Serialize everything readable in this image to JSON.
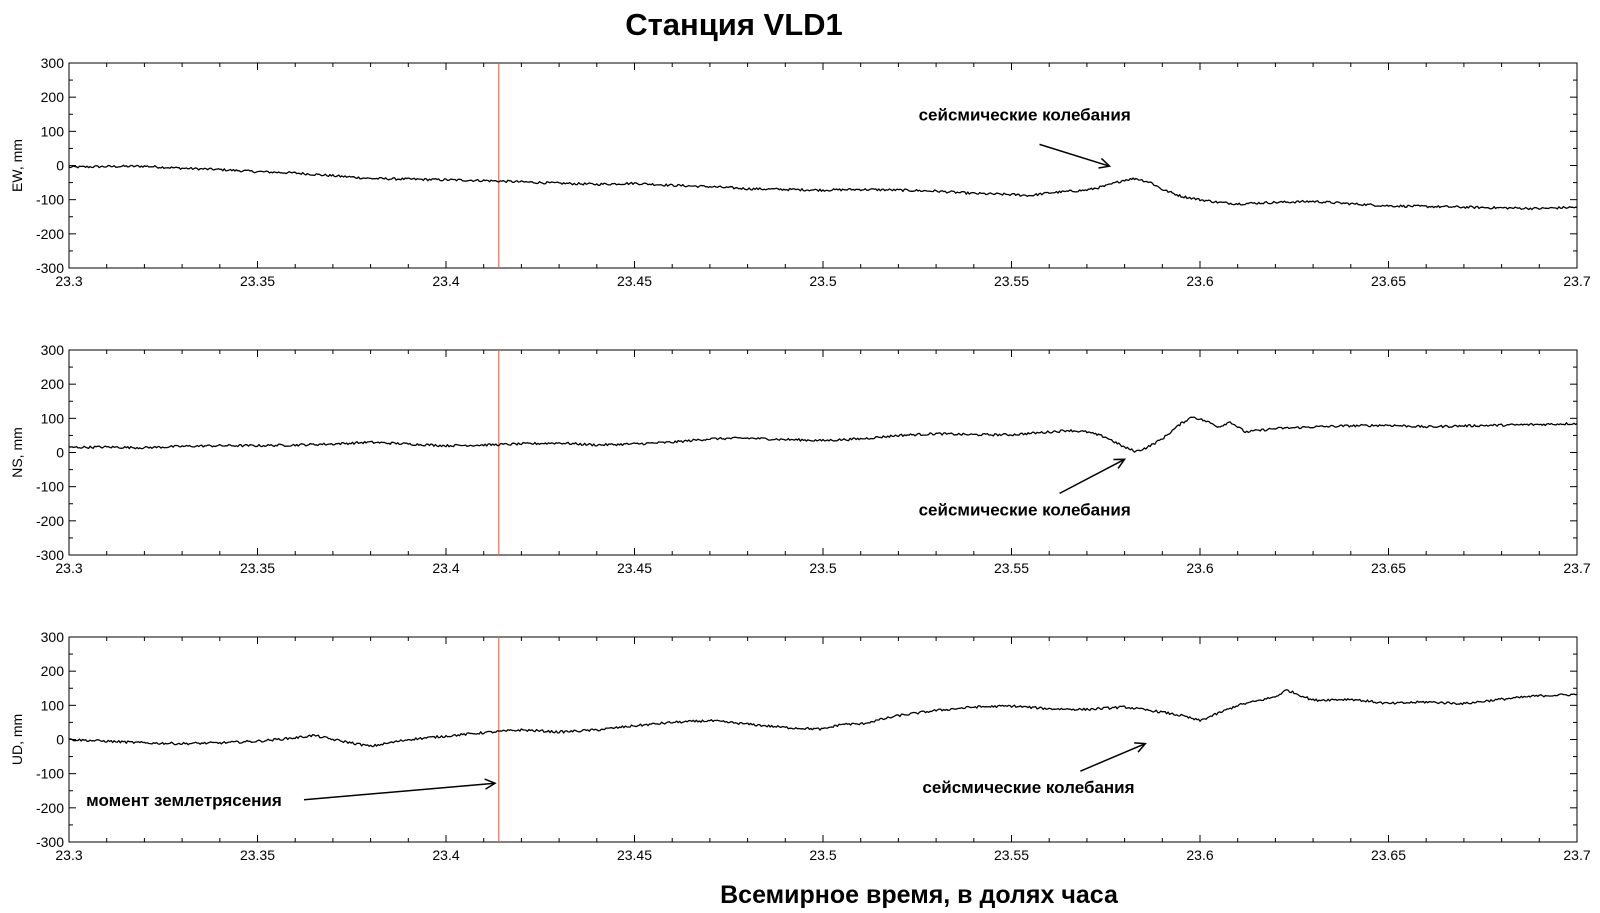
{
  "title": "Станция VLD1",
  "xlabel": "Всемирное время, в долях часа",
  "colors": {
    "signal": "#000000",
    "event_line": "#e07060",
    "axes": "#000000"
  },
  "chart_data": [
    {
      "type": "line",
      "ylabel": "EW, mm",
      "xlim": [
        23.3,
        23.7
      ],
      "ylim": [
        -300,
        300
      ],
      "xticks": [
        23.3,
        23.35,
        23.4,
        23.45,
        23.5,
        23.55,
        23.6,
        23.65,
        23.7
      ],
      "xtick_labels": [
        "23.3",
        "23.35",
        "23.4",
        "23.45",
        "23.5",
        "23.55",
        "23.6",
        "23.65",
        "23.7"
      ],
      "yticks": [
        -300,
        -200,
        -100,
        0,
        100,
        200,
        300
      ],
      "ytick_labels": [
        "-300",
        "-200",
        "-100",
        "0",
        "100",
        "200",
        "300"
      ],
      "event_x": 23.414,
      "series": [
        {
          "x": [
            23.3,
            23.31,
            23.32,
            23.33,
            23.34,
            23.35,
            23.36,
            23.37,
            23.38,
            23.39,
            23.4,
            23.41,
            23.42,
            23.43,
            23.44,
            23.45,
            23.46,
            23.47,
            23.48,
            23.49,
            23.5,
            23.51,
            23.52,
            23.53,
            23.54,
            23.55,
            23.555,
            23.56,
            23.565,
            23.57,
            23.575,
            23.58,
            23.583,
            23.587,
            23.59,
            23.595,
            23.6,
            23.605,
            23.61,
            23.62,
            23.63,
            23.64,
            23.65,
            23.66,
            23.67,
            23.68,
            23.69,
            23.7
          ],
          "values": [
            -5,
            -3,
            -2,
            -8,
            -12,
            -18,
            -22,
            -30,
            -38,
            -40,
            -42,
            -44,
            -48,
            -52,
            -55,
            -52,
            -58,
            -62,
            -68,
            -70,
            -72,
            -70,
            -72,
            -75,
            -82,
            -85,
            -88,
            -80,
            -76,
            -72,
            -60,
            -42,
            -38,
            -50,
            -70,
            -90,
            -100,
            -108,
            -112,
            -108,
            -105,
            -112,
            -118,
            -120,
            -122,
            -124,
            -126,
            -122
          ]
        }
      ],
      "annotations": [
        {
          "text": "сейсмические колебания",
          "x": 23.5535,
          "y": 132,
          "target_x": 23.576,
          "target_y": -2
        }
      ]
    },
    {
      "type": "line",
      "ylabel": "NS, mm",
      "xlim": [
        23.3,
        23.7
      ],
      "ylim": [
        -300,
        300
      ],
      "xticks": [
        23.3,
        23.35,
        23.4,
        23.45,
        23.5,
        23.55,
        23.6,
        23.65,
        23.7
      ],
      "xtick_labels": [
        "23.3",
        "23.35",
        "23.4",
        "23.45",
        "23.5",
        "23.55",
        "23.6",
        "23.65",
        "23.7"
      ],
      "yticks": [
        -300,
        -200,
        -100,
        0,
        100,
        200,
        300
      ],
      "ytick_labels": [
        "-300",
        "-200",
        "-100",
        "0",
        "100",
        "200",
        "300"
      ],
      "event_x": 23.414,
      "series": [
        {
          "x": [
            23.3,
            23.31,
            23.32,
            23.33,
            23.34,
            23.35,
            23.36,
            23.37,
            23.38,
            23.39,
            23.4,
            23.41,
            23.42,
            23.43,
            23.44,
            23.45,
            23.46,
            23.47,
            23.48,
            23.49,
            23.5,
            23.51,
            23.52,
            23.53,
            23.54,
            23.55,
            23.56,
            23.565,
            23.57,
            23.575,
            23.58,
            23.583,
            23.586,
            23.59,
            23.595,
            23.598,
            23.602,
            23.605,
            23.608,
            23.612,
            23.62,
            23.63,
            23.64,
            23.65,
            23.66,
            23.67,
            23.68,
            23.69,
            23.7
          ],
          "values": [
            15,
            16,
            14,
            18,
            20,
            20,
            22,
            25,
            30,
            25,
            20,
            22,
            25,
            28,
            22,
            25,
            30,
            40,
            42,
            38,
            35,
            40,
            50,
            55,
            52,
            52,
            60,
            65,
            60,
            45,
            15,
            3,
            15,
            40,
            85,
            105,
            90,
            75,
            90,
            60,
            70,
            75,
            78,
            80,
            75,
            78,
            80,
            82,
            85
          ]
        }
      ],
      "annotations": [
        {
          "text": "сейсмические колебания",
          "x": 23.5535,
          "y": -184,
          "target_x": 23.58,
          "target_y": -20
        }
      ]
    },
    {
      "type": "line",
      "ylabel": "UD, mm",
      "xlim": [
        23.3,
        23.7
      ],
      "ylim": [
        -300,
        300
      ],
      "xticks": [
        23.3,
        23.35,
        23.4,
        23.45,
        23.5,
        23.55,
        23.6,
        23.65,
        23.7
      ],
      "xtick_labels": [
        "23.3",
        "23.35",
        "23.4",
        "23.45",
        "23.5",
        "23.55",
        "23.6",
        "23.65",
        "23.7"
      ],
      "yticks": [
        -300,
        -200,
        -100,
        0,
        100,
        200,
        300
      ],
      "ytick_labels": [
        "-300",
        "-200",
        "-100",
        "0",
        "100",
        "200",
        "300"
      ],
      "event_x": 23.414,
      "series": [
        {
          "x": [
            23.3,
            23.31,
            23.32,
            23.33,
            23.34,
            23.35,
            23.36,
            23.365,
            23.37,
            23.38,
            23.39,
            23.4,
            23.41,
            23.42,
            23.43,
            23.44,
            23.45,
            23.46,
            23.47,
            23.48,
            23.49,
            23.5,
            23.505,
            23.51,
            23.52,
            23.53,
            23.54,
            23.55,
            23.56,
            23.57,
            23.58,
            23.59,
            23.595,
            23.6,
            23.61,
            23.62,
            23.623,
            23.63,
            23.64,
            23.65,
            23.66,
            23.67,
            23.68,
            23.69,
            23.7
          ],
          "values": [
            0,
            -5,
            -10,
            -12,
            -10,
            -5,
            5,
            12,
            0,
            -20,
            0,
            10,
            20,
            28,
            22,
            28,
            40,
            50,
            55,
            45,
            35,
            30,
            45,
            45,
            70,
            85,
            95,
            98,
            90,
            88,
            95,
            80,
            70,
            55,
            100,
            125,
            145,
            115,
            118,
            105,
            110,
            105,
            118,
            128,
            132
          ]
        }
      ],
      "annotations": [
        {
          "text": "момент землетрясения",
          "x": 23.3305,
          "y": -194,
          "target_x": 23.413,
          "target_y": -128
        },
        {
          "text": "сейсмические колебания",
          "x": 23.5545,
          "y": -157,
          "target_x": 23.5855,
          "target_y": -12
        }
      ]
    }
  ]
}
